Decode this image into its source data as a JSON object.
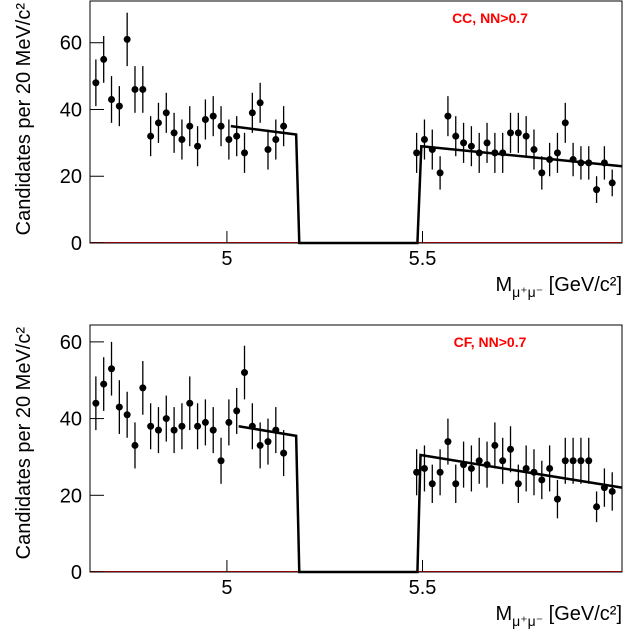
{
  "chart_data": [
    {
      "type": "scatter",
      "label": "CC, NN>0.7",
      "label_color": "#ff0000",
      "x_label": {
        "main": "M",
        "sub": "μ⁺μ⁻",
        "unit": " [GeV/c²]"
      },
      "y_label": "Candidates per 20 MeV/c²",
      "xlim": [
        4.65,
        6.01
      ],
      "ylim": [
        0,
        72.5
      ],
      "xticks": [
        5,
        5.5
      ],
      "yticks": [
        0,
        20,
        40,
        60
      ],
      "series": [
        {
          "style": "errorbar",
          "color": "#000000",
          "x": [
            4.665,
            4.685,
            4.705,
            4.725,
            4.745,
            4.765,
            4.785,
            4.805,
            4.825,
            4.845,
            4.865,
            4.885,
            4.905,
            4.925,
            4.945,
            4.965,
            4.985,
            5.005,
            5.025,
            5.045,
            5.065,
            5.085,
            5.105,
            5.125,
            5.145,
            5.485,
            5.505,
            5.525,
            5.545,
            5.565,
            5.585,
            5.605,
            5.625,
            5.645,
            5.665,
            5.685,
            5.705,
            5.725,
            5.745,
            5.765,
            5.785,
            5.805,
            5.825,
            5.845,
            5.865,
            5.885,
            5.905,
            5.925,
            5.945,
            5.965,
            5.985
          ],
          "values": [
            48,
            55,
            43,
            41,
            61,
            46,
            46,
            32,
            36,
            39,
            33,
            31,
            35,
            29,
            37,
            38,
            35,
            31,
            32,
            27,
            39,
            42,
            28,
            31,
            35,
            27,
            31,
            28,
            21,
            38,
            32,
            30,
            29,
            27,
            30,
            27,
            27,
            33,
            33,
            32,
            28,
            21,
            25,
            27,
            36,
            25,
            24,
            24,
            16,
            24,
            18
          ],
          "errors": [
            7,
            7,
            7,
            6,
            8,
            7,
            7,
            6,
            6,
            6,
            6,
            6,
            6,
            6,
            6,
            6,
            6,
            6,
            6,
            6,
            6,
            6,
            6,
            6,
            6,
            6,
            6,
            6,
            5,
            6,
            6,
            6,
            6,
            6,
            6,
            6,
            6,
            6,
            6,
            6,
            6,
            5,
            5,
            6,
            6,
            5,
            5,
            5,
            4,
            5,
            4
          ]
        },
        {
          "style": "line",
          "color": "#000000",
          "x": [
            5.01,
            5.177,
            5.185,
            5.487,
            5.497,
            6.01
          ],
          "values": [
            35,
            32.5,
            0,
            0,
            29,
            23
          ]
        }
      ]
    },
    {
      "type": "scatter",
      "label": "CF, NN>0.7",
      "label_color": "#ff0000",
      "x_label": {
        "main": "M",
        "sub": "μ⁺μ⁻",
        "unit": " [GeV/c²]"
      },
      "y_label": "Candidates per 20 MeV/c²",
      "xlim": [
        4.65,
        6.01
      ],
      "ylim": [
        0,
        64.4
      ],
      "xticks": [
        5,
        5.5
      ],
      "yticks": [
        0,
        20,
        40,
        60
      ],
      "series": [
        {
          "style": "errorbar",
          "color": "#000000",
          "x": [
            4.665,
            4.685,
            4.705,
            4.725,
            4.745,
            4.765,
            4.785,
            4.805,
            4.825,
            4.845,
            4.865,
            4.885,
            4.905,
            4.925,
            4.945,
            4.965,
            4.985,
            5.005,
            5.025,
            5.045,
            5.065,
            5.085,
            5.105,
            5.125,
            5.145,
            5.485,
            5.505,
            5.525,
            5.545,
            5.565,
            5.585,
            5.605,
            5.625,
            5.645,
            5.665,
            5.685,
            5.705,
            5.725,
            5.745,
            5.765,
            5.785,
            5.805,
            5.825,
            5.845,
            5.865,
            5.885,
            5.905,
            5.925,
            5.945,
            5.965,
            5.985
          ],
          "values": [
            44,
            49,
            53,
            43,
            41,
            33,
            48,
            38,
            37,
            40,
            37,
            38,
            44,
            38,
            39,
            37,
            29,
            39,
            42,
            52,
            38,
            33,
            34,
            37,
            31,
            26,
            27,
            23,
            26,
            34,
            23,
            28,
            27,
            29,
            28,
            33,
            29,
            32,
            23,
            27,
            26,
            24,
            27,
            19,
            29,
            29,
            29,
            29,
            17,
            22,
            21
          ],
          "errors": [
            7,
            7,
            7,
            7,
            6,
            6,
            7,
            6,
            6,
            6,
            6,
            6,
            7,
            6,
            6,
            6,
            6,
            6,
            6,
            7,
            6,
            6,
            6,
            6,
            6,
            6,
            6,
            5,
            6,
            6,
            5,
            6,
            6,
            6,
            6,
            6,
            6,
            6,
            5,
            6,
            6,
            5,
            6,
            5,
            6,
            6,
            6,
            6,
            4,
            5,
            5
          ]
        },
        {
          "style": "line",
          "color": "#000000",
          "x": [
            5.03,
            5.177,
            5.185,
            5.487,
            5.495,
            6.01
          ],
          "values": [
            38,
            35.5,
            0,
            0,
            30.5,
            22
          ]
        }
      ]
    }
  ]
}
